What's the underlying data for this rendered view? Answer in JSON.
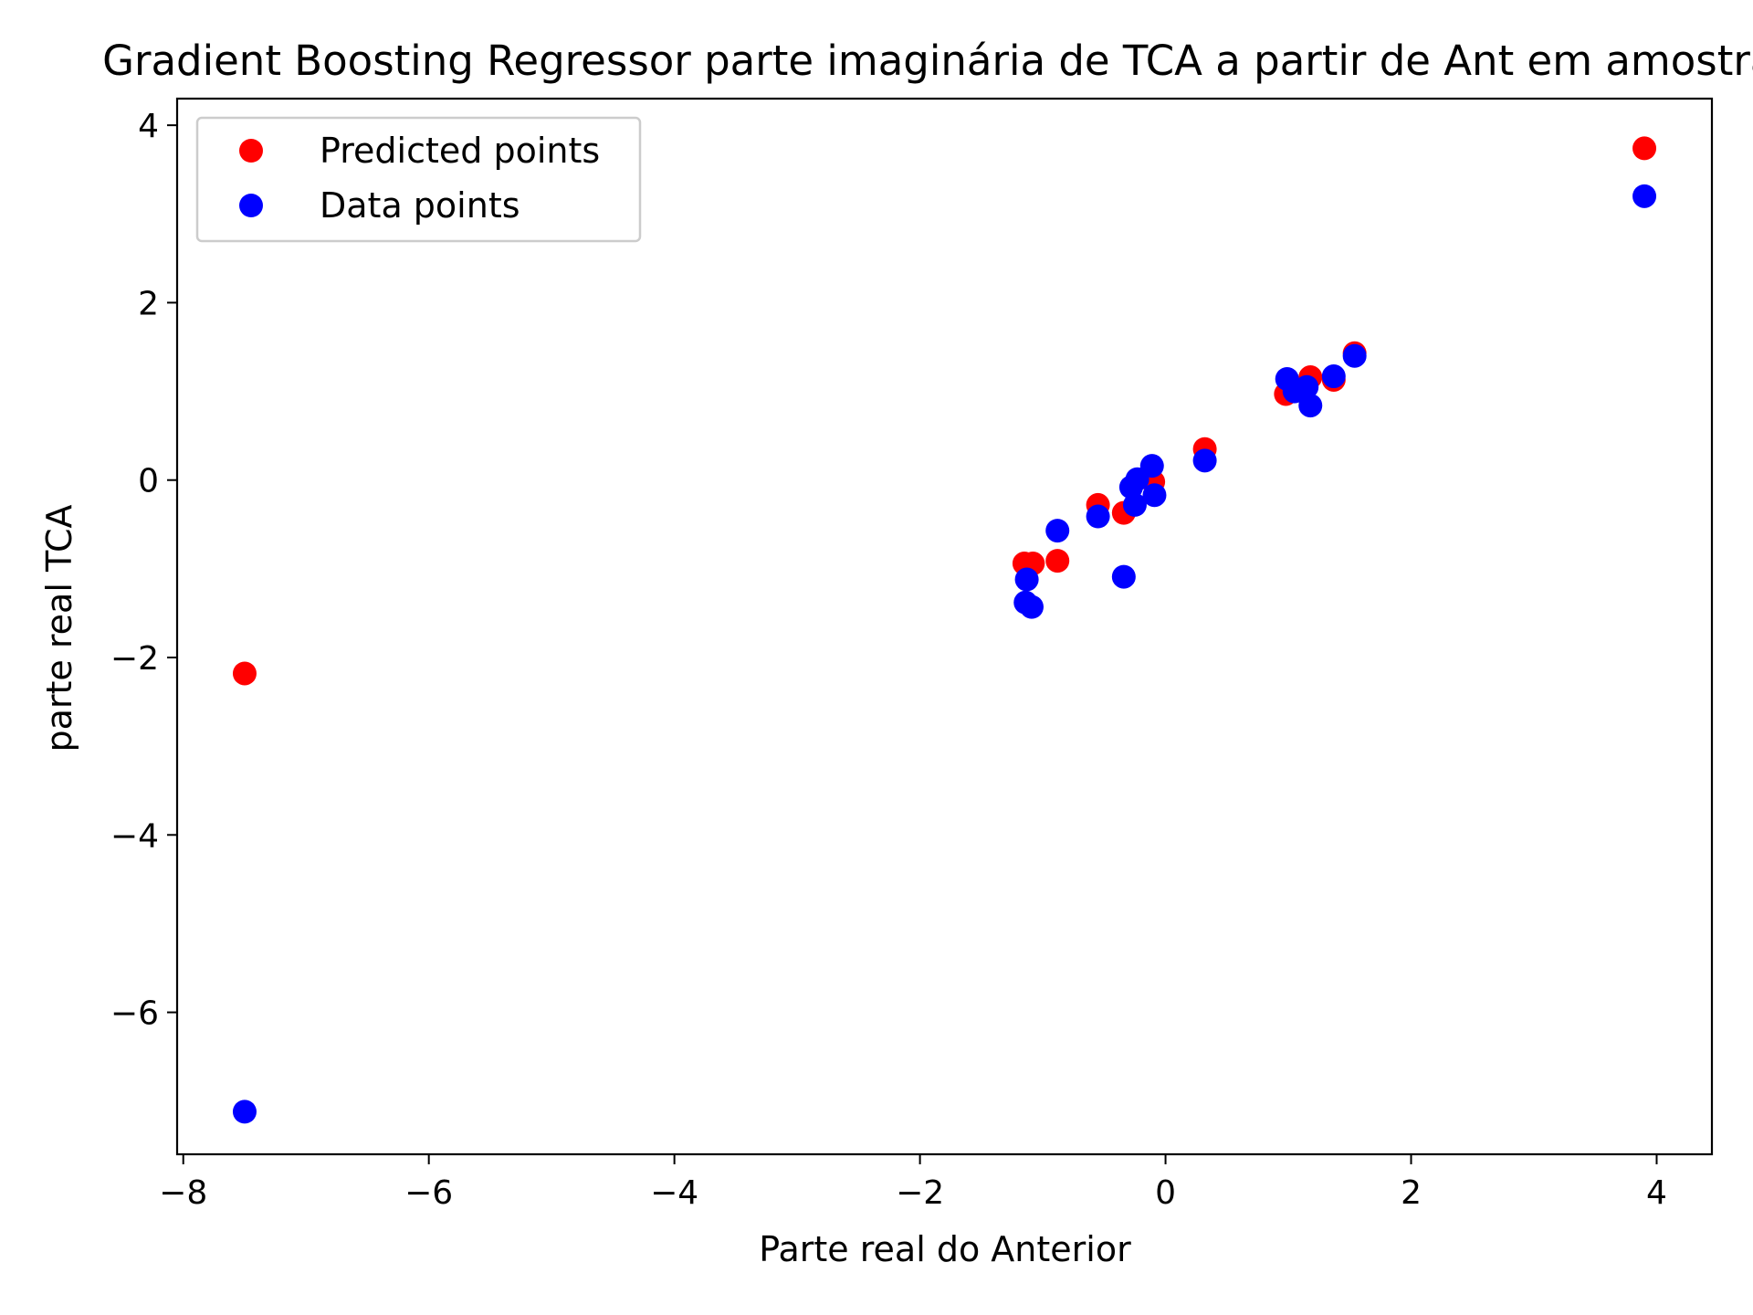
{
  "chart_data": {
    "type": "scatter",
    "title": "Gradient Boosting Regressor parte imaginária de TCA a partir de Ant em amostras",
    "xlabel": "Parte real do Anterior",
    "ylabel": "parte real TCA",
    "xlim": [
      -8.05,
      4.45
    ],
    "ylim": [
      -7.6,
      4.3
    ],
    "xticks": [
      -8,
      -6,
      -4,
      -2,
      0,
      2,
      4
    ],
    "yticks": [
      4,
      2,
      0,
      -2,
      -4,
      -6
    ],
    "xtick_labels": [
      "−8",
      "−6",
      "−4",
      "−2",
      "0",
      "2",
      "4"
    ],
    "ytick_labels": [
      "4",
      "2",
      "0",
      "−2",
      "−4",
      "−6"
    ],
    "grid": false,
    "legend_position": "upper-left",
    "series": [
      {
        "name": "Predicted points",
        "color": "#ff0000",
        "points": [
          [
            -7.5,
            -2.18
          ],
          [
            3.9,
            3.74
          ],
          [
            -1.15,
            -0.94
          ],
          [
            -1.08,
            -0.94
          ],
          [
            -0.88,
            -0.91
          ],
          [
            -0.55,
            -0.28
          ],
          [
            -0.34,
            -0.37
          ],
          [
            -0.1,
            -0.02
          ],
          [
            0.32,
            0.35
          ],
          [
            0.98,
            0.97
          ],
          [
            1.18,
            1.16
          ],
          [
            1.37,
            1.13
          ],
          [
            1.54,
            1.43
          ]
        ]
      },
      {
        "name": "Data points",
        "color": "#0000ff",
        "points": [
          [
            -7.5,
            -7.12
          ],
          [
            3.9,
            3.2
          ],
          [
            -1.14,
            -1.38
          ],
          [
            -1.13,
            -1.12
          ],
          [
            -1.09,
            -1.43
          ],
          [
            -0.88,
            -0.57
          ],
          [
            -0.55,
            -0.41
          ],
          [
            -0.34,
            -1.09
          ],
          [
            -0.28,
            -0.08
          ],
          [
            -0.25,
            -0.28
          ],
          [
            -0.23,
            0.01
          ],
          [
            -0.11,
            0.16
          ],
          [
            -0.09,
            -0.17
          ],
          [
            0.32,
            0.22
          ],
          [
            0.99,
            1.14
          ],
          [
            1.05,
            1.0
          ],
          [
            1.15,
            1.05
          ],
          [
            1.18,
            0.84
          ],
          [
            1.37,
            1.17
          ],
          [
            1.54,
            1.4
          ]
        ]
      }
    ]
  }
}
